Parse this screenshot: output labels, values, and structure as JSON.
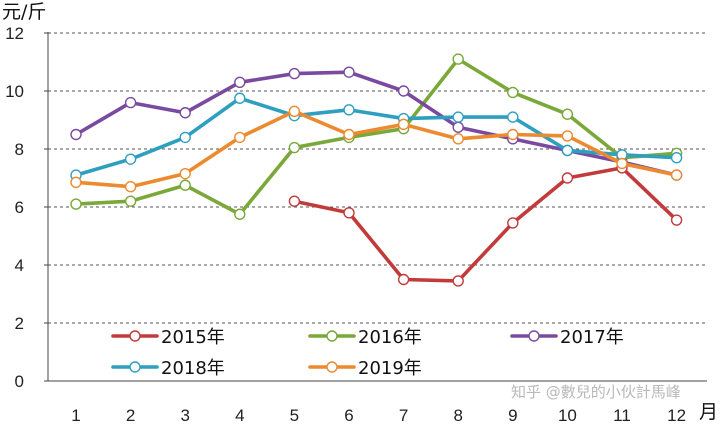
{
  "chart_data": {
    "type": "line",
    "y_unit_label": "元/斤",
    "x_unit_label": "月",
    "categories": [
      "1",
      "2",
      "3",
      "4",
      "5",
      "6",
      "7",
      "8",
      "9",
      "10",
      "11",
      "12"
    ],
    "ylim": [
      0,
      12
    ],
    "yticks": [
      "0",
      "2",
      "4",
      "6",
      "8",
      "10",
      "12"
    ],
    "grid": true,
    "legend_position": "bottom-inside",
    "series": [
      {
        "name": "2015年",
        "color": "#c23b3b",
        "values": [
          null,
          null,
          null,
          null,
          6.2,
          5.8,
          3.5,
          3.45,
          5.45,
          7.0,
          7.35,
          5.55
        ]
      },
      {
        "name": "2016年",
        "color": "#7aa83a",
        "values": [
          6.1,
          6.2,
          6.75,
          5.75,
          8.05,
          8.4,
          8.7,
          11.1,
          9.95,
          9.2,
          7.7,
          7.85
        ]
      },
      {
        "name": "2017年",
        "color": "#7a4aa0",
        "values": [
          8.5,
          9.6,
          9.25,
          10.3,
          10.6,
          10.65,
          10.0,
          8.75,
          8.35,
          7.95,
          7.55,
          7.1
        ]
      },
      {
        "name": "2018年",
        "color": "#2f9fc0",
        "values": [
          7.1,
          7.65,
          8.4,
          9.75,
          9.15,
          9.35,
          9.05,
          9.1,
          9.1,
          7.95,
          7.8,
          7.7
        ]
      },
      {
        "name": "2019年",
        "color": "#ec8a30",
        "values": [
          6.85,
          6.7,
          7.15,
          8.4,
          9.3,
          8.5,
          8.85,
          8.35,
          8.5,
          8.45,
          7.5,
          7.1
        ]
      }
    ]
  },
  "watermark_text": "知乎 @數兒的小伙計馬峰"
}
